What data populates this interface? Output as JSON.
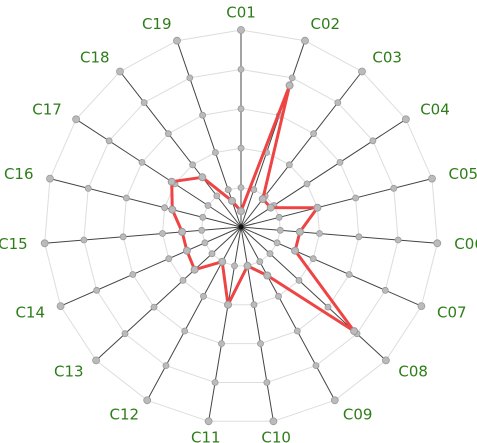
{
  "colors": {
    "grid": "#dddddd",
    "spoke": "#444444",
    "marker_fill": "#bbbbbb",
    "marker_stroke": "#9a9a9a",
    "series": "#ee4444",
    "label": "#2e7d1a"
  },
  "chart_data": {
    "type": "radar",
    "title": "",
    "grid": true,
    "rlim": [
      0,
      5
    ],
    "categories": [
      "C01",
      "C02",
      "C03",
      "C04",
      "C05",
      "C06",
      "C07",
      "C08",
      "C09",
      "C10",
      "C11",
      "C12",
      "C13",
      "C14",
      "C15",
      "C16",
      "C17",
      "C18",
      "C19"
    ],
    "series": [
      {
        "values": [
          0.4,
          3.8,
          0.9,
          0.9,
          2.0,
          1.5,
          1.5,
          3.9,
          1.4,
          1.0,
          2.0,
          1.0,
          1.6,
          1.5,
          1.5,
          1.8,
          2.1,
          1.6,
          0.7
        ]
      }
    ]
  }
}
